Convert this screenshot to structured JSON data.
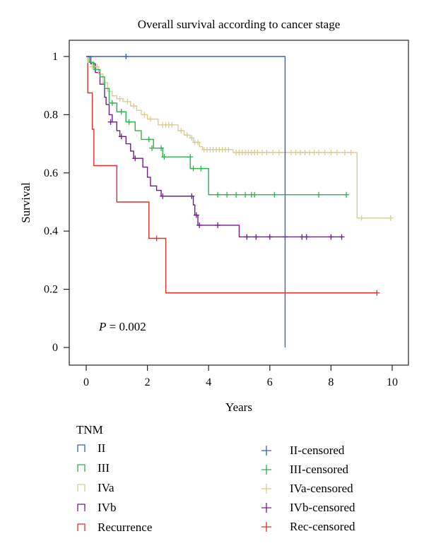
{
  "chart_data": {
    "type": "line",
    "title": "Overall survival according to cancer stage",
    "xlabel": "Years",
    "ylabel": "Survival",
    "xlim": [
      0,
      10
    ],
    "ylim": [
      0,
      1
    ],
    "xticks": [
      "0",
      "2",
      "4",
      "6",
      "8",
      "10"
    ],
    "yticks": [
      "0",
      "0.2",
      "0.4",
      "0.6",
      "0.8",
      "1"
    ],
    "grid": false,
    "annotation": {
      "italic": "P",
      "text": " = 0.002"
    },
    "legend_title": "TNM",
    "series": [
      {
        "name": "II",
        "censored_label": "II-censored",
        "color": "#3a5fc6",
        "steps": [
          [
            0,
            1.0
          ],
          [
            6.5,
            0.0
          ]
        ],
        "end": 6.5,
        "censored": [
          [
            1.3,
            1.0
          ]
        ]
      },
      {
        "name": "III",
        "censored_label": "III-censored",
        "color": "#2bb24c",
        "steps": [
          [
            0,
            1.0
          ],
          [
            0.1,
            0.98
          ],
          [
            0.25,
            0.955
          ],
          [
            0.45,
            0.93
          ],
          [
            0.6,
            0.89
          ],
          [
            0.75,
            0.84
          ],
          [
            1.0,
            0.81
          ],
          [
            1.3,
            0.775
          ],
          [
            1.6,
            0.745
          ],
          [
            1.8,
            0.715
          ],
          [
            2.2,
            0.685
          ],
          [
            2.5,
            0.655
          ],
          [
            3.4,
            0.615
          ],
          [
            4.0,
            0.525
          ]
        ],
        "end": 8.5,
        "censored": [
          [
            0.85,
            0.84
          ],
          [
            1.15,
            0.81
          ],
          [
            1.4,
            0.775
          ],
          [
            2.05,
            0.715
          ],
          [
            2.15,
            0.685
          ],
          [
            2.45,
            0.685
          ],
          [
            2.55,
            0.655
          ],
          [
            3.4,
            0.655
          ],
          [
            3.5,
            0.615
          ],
          [
            3.75,
            0.615
          ],
          [
            4.3,
            0.525
          ],
          [
            4.6,
            0.525
          ],
          [
            4.9,
            0.525
          ],
          [
            5.2,
            0.525
          ],
          [
            5.4,
            0.525
          ],
          [
            5.5,
            0.525
          ],
          [
            6.15,
            0.525
          ],
          [
            7.6,
            0.525
          ],
          [
            8.5,
            0.525
          ]
        ]
      },
      {
        "name": "IVa",
        "censored_label": "IVa-censored",
        "color": "#d8cc96",
        "steps": [
          [
            0,
            1.0
          ],
          [
            0.05,
            0.98
          ],
          [
            0.2,
            0.965
          ],
          [
            0.4,
            0.94
          ],
          [
            0.55,
            0.91
          ],
          [
            0.7,
            0.88
          ],
          [
            0.85,
            0.865
          ],
          [
            1.0,
            0.855
          ],
          [
            1.2,
            0.845
          ],
          [
            1.45,
            0.83
          ],
          [
            1.65,
            0.815
          ],
          [
            1.8,
            0.8
          ],
          [
            2.0,
            0.785
          ],
          [
            2.35,
            0.765
          ],
          [
            3.0,
            0.745
          ],
          [
            3.2,
            0.73
          ],
          [
            3.4,
            0.72
          ],
          [
            3.5,
            0.705
          ],
          [
            3.7,
            0.69
          ],
          [
            3.8,
            0.68
          ],
          [
            4.8,
            0.67
          ],
          [
            8.85,
            0.445
          ]
        ],
        "end": 9.95,
        "censored": [
          [
            0.2,
            0.965
          ],
          [
            0.35,
            0.965
          ],
          [
            0.6,
            0.91
          ],
          [
            1.1,
            0.855
          ],
          [
            1.35,
            0.845
          ],
          [
            1.55,
            0.83
          ],
          [
            1.9,
            0.8
          ],
          [
            2.1,
            0.785
          ],
          [
            2.5,
            0.765
          ],
          [
            2.6,
            0.765
          ],
          [
            2.7,
            0.765
          ],
          [
            2.8,
            0.765
          ],
          [
            3.1,
            0.745
          ],
          [
            3.3,
            0.73
          ],
          [
            3.45,
            0.72
          ],
          [
            3.55,
            0.705
          ],
          [
            3.65,
            0.705
          ],
          [
            3.85,
            0.68
          ],
          [
            3.95,
            0.68
          ],
          [
            4.05,
            0.68
          ],
          [
            4.15,
            0.68
          ],
          [
            4.25,
            0.68
          ],
          [
            4.35,
            0.68
          ],
          [
            4.45,
            0.68
          ],
          [
            4.55,
            0.68
          ],
          [
            4.65,
            0.68
          ],
          [
            4.9,
            0.67
          ],
          [
            5.0,
            0.67
          ],
          [
            5.1,
            0.67
          ],
          [
            5.2,
            0.67
          ],
          [
            5.3,
            0.67
          ],
          [
            5.4,
            0.67
          ],
          [
            5.5,
            0.67
          ],
          [
            5.6,
            0.67
          ],
          [
            5.75,
            0.67
          ],
          [
            5.9,
            0.67
          ],
          [
            6.1,
            0.67
          ],
          [
            6.3,
            0.67
          ],
          [
            6.5,
            0.67
          ],
          [
            6.7,
            0.67
          ],
          [
            6.85,
            0.67
          ],
          [
            7.0,
            0.67
          ],
          [
            7.15,
            0.67
          ],
          [
            7.3,
            0.67
          ],
          [
            7.45,
            0.67
          ],
          [
            7.6,
            0.67
          ],
          [
            7.8,
            0.67
          ],
          [
            8.0,
            0.67
          ],
          [
            8.2,
            0.67
          ],
          [
            8.45,
            0.67
          ],
          [
            8.65,
            0.67
          ],
          [
            9.0,
            0.445
          ],
          [
            9.95,
            0.445
          ]
        ]
      },
      {
        "name": "IVb",
        "censored_label": "IVb-censored",
        "color": "#6e1f8a",
        "steps": [
          [
            0,
            1.0
          ],
          [
            0.15,
            0.975
          ],
          [
            0.3,
            0.945
          ],
          [
            0.45,
            0.905
          ],
          [
            0.6,
            0.86
          ],
          [
            0.65,
            0.835
          ],
          [
            0.75,
            0.8
          ],
          [
            0.85,
            0.775
          ],
          [
            1.0,
            0.745
          ],
          [
            1.1,
            0.725
          ],
          [
            1.3,
            0.7
          ],
          [
            1.45,
            0.675
          ],
          [
            1.55,
            0.65
          ],
          [
            1.85,
            0.62
          ],
          [
            2.0,
            0.585
          ],
          [
            2.1,
            0.555
          ],
          [
            2.3,
            0.54
          ],
          [
            2.45,
            0.52
          ],
          [
            3.5,
            0.49
          ],
          [
            3.55,
            0.455
          ],
          [
            3.65,
            0.42
          ],
          [
            5.0,
            0.38
          ]
        ],
        "end": 8.35,
        "censored": [
          [
            0.8,
            0.775
          ],
          [
            1.15,
            0.725
          ],
          [
            1.6,
            0.65
          ],
          [
            2.5,
            0.52
          ],
          [
            3.45,
            0.52
          ],
          [
            3.6,
            0.455
          ],
          [
            3.7,
            0.42
          ],
          [
            4.3,
            0.42
          ],
          [
            5.25,
            0.38
          ],
          [
            5.55,
            0.38
          ],
          [
            6.0,
            0.38
          ],
          [
            6.5,
            0.38
          ],
          [
            7.05,
            0.38
          ],
          [
            7.2,
            0.38
          ],
          [
            8.0,
            0.38
          ],
          [
            8.35,
            0.38
          ]
        ]
      },
      {
        "name": "Recurrence",
        "censored_label": "Rec-censored",
        "color": "#e32d2d",
        "steps": [
          [
            0,
            1.0
          ],
          [
            0.05,
            0.875
          ],
          [
            0.2,
            0.75
          ],
          [
            0.25,
            0.625
          ],
          [
            1.0,
            0.5
          ],
          [
            2.05,
            0.375
          ],
          [
            2.6,
            0.1875
          ]
        ],
        "end": 9.5,
        "censored": [
          [
            2.3,
            0.375
          ],
          [
            9.5,
            0.1875
          ]
        ]
      }
    ]
  }
}
